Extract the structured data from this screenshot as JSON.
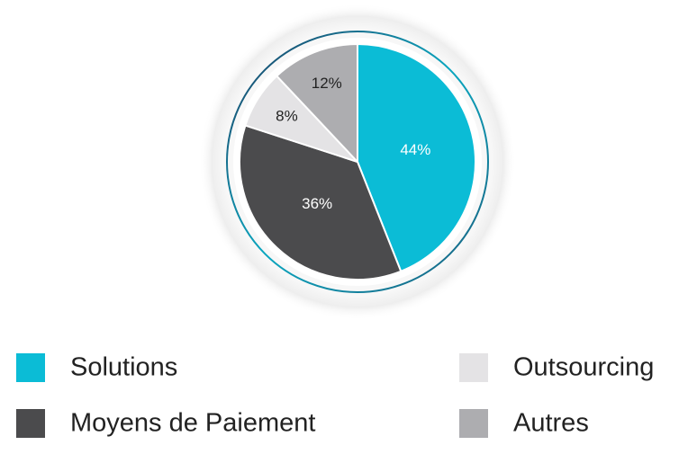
{
  "chart_data": {
    "type": "pie",
    "series": [
      {
        "name": "Solutions",
        "color": "#0bbcd6",
        "values": [
          44
        ],
        "value_labels": [
          "44%"
        ]
      },
      {
        "name": "Moyens de Paiement",
        "color": "#4b4b4d",
        "values": [
          36
        ],
        "value_labels": [
          "36%"
        ]
      },
      {
        "name": "Outsourcing",
        "color": "#e4e3e5",
        "values": [
          8
        ],
        "value_labels": [
          "8%"
        ]
      },
      {
        "name": "Autres",
        "color": "#adadb0",
        "values": [
          12
        ],
        "value_labels": [
          "12%"
        ]
      }
    ]
  }
}
